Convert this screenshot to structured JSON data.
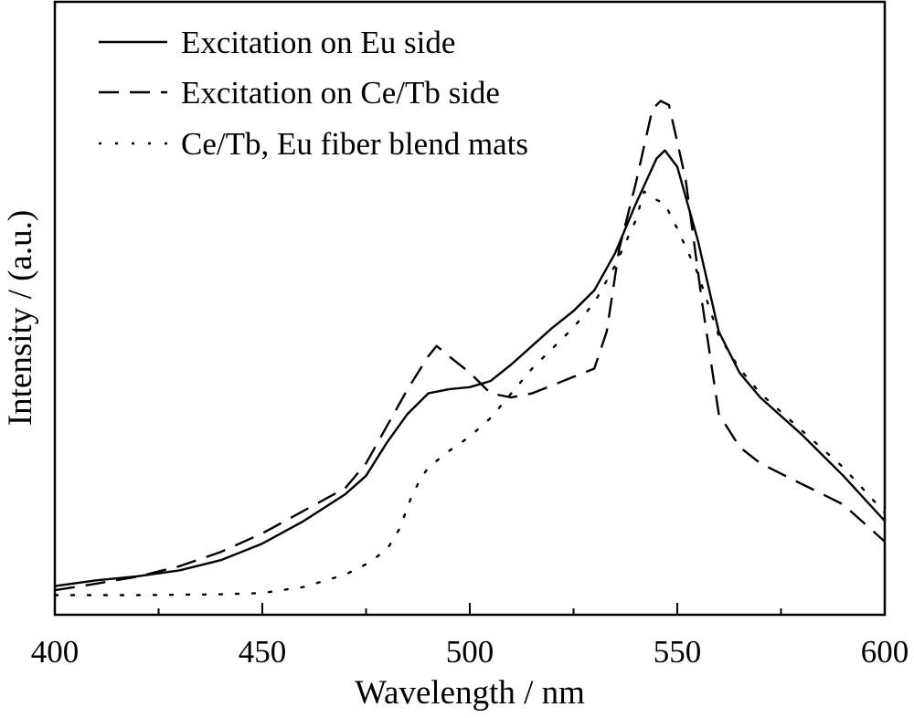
{
  "chart_data": {
    "type": "line",
    "title": "",
    "xlabel": "Wavelength / nm",
    "ylabel": "Intensity / (a.u.)",
    "xlim": [
      400,
      600
    ],
    "ylim": [
      0,
      1.2
    ],
    "x_ticks": [
      400,
      450,
      500,
      550,
      600
    ],
    "x_tick_labels": [
      "400",
      "450",
      "500",
      "550",
      "600"
    ],
    "y_ticks_labeled": false,
    "grid": false,
    "legend_position": "top-left",
    "series": [
      {
        "name": "Excitation on Eu side",
        "style": "solid",
        "color": "#000000",
        "x": [
          400,
          410,
          420,
          430,
          440,
          450,
          460,
          470,
          475,
          480,
          485,
          490,
          495,
          500,
          505,
          510,
          515,
          520,
          525,
          530,
          535,
          540,
          545,
          547,
          550,
          555,
          560,
          565,
          570,
          580,
          590,
          600
        ],
        "y": [
          0.032,
          0.046,
          0.056,
          0.07,
          0.095,
          0.135,
          0.19,
          0.255,
          0.3,
          0.38,
          0.45,
          0.5,
          0.51,
          0.515,
          0.53,
          0.57,
          0.615,
          0.66,
          0.7,
          0.75,
          0.84,
          0.96,
          1.07,
          1.09,
          1.05,
          0.87,
          0.65,
          0.55,
          0.49,
          0.4,
          0.3,
          0.19
        ]
      },
      {
        "name": "Excitation on Ce/Tb side",
        "style": "dashed",
        "color": "#000000",
        "x": [
          400,
          410,
          420,
          430,
          440,
          450,
          460,
          470,
          475,
          480,
          485,
          490,
          492,
          495,
          500,
          505,
          510,
          515,
          520,
          525,
          530,
          533,
          536,
          540,
          544,
          546,
          548,
          552,
          556,
          560,
          565,
          570,
          580,
          590,
          600
        ],
        "y": [
          0.022,
          0.038,
          0.055,
          0.08,
          0.115,
          0.16,
          0.215,
          0.27,
          0.33,
          0.42,
          0.51,
          0.59,
          0.615,
          0.59,
          0.55,
          0.5,
          0.49,
          0.5,
          0.52,
          0.54,
          0.56,
          0.65,
          0.85,
          1.01,
          1.19,
          1.21,
          1.2,
          1.02,
          0.72,
          0.45,
          0.37,
          0.33,
          0.28,
          0.23,
          0.14
        ]
      },
      {
        "name": "Ce/Tb, Eu fiber blend mats",
        "style": "dotted",
        "color": "#000000",
        "x": [
          400,
          420,
          440,
          450,
          460,
          470,
          475,
          480,
          483,
          486,
          488,
          490,
          495,
          500,
          505,
          510,
          515,
          520,
          525,
          530,
          535,
          540,
          542,
          545,
          547,
          550,
          555,
          560,
          565,
          570,
          580,
          590,
          600
        ],
        "y": [
          0.01,
          0.01,
          0.012,
          0.015,
          0.03,
          0.06,
          0.085,
          0.12,
          0.17,
          0.25,
          0.29,
          0.32,
          0.36,
          0.395,
          0.44,
          0.5,
          0.56,
          0.61,
          0.66,
          0.72,
          0.81,
          0.92,
          0.99,
          0.97,
          0.96,
          0.9,
          0.79,
          0.64,
          0.56,
          0.5,
          0.41,
          0.32,
          0.21
        ]
      }
    ]
  }
}
